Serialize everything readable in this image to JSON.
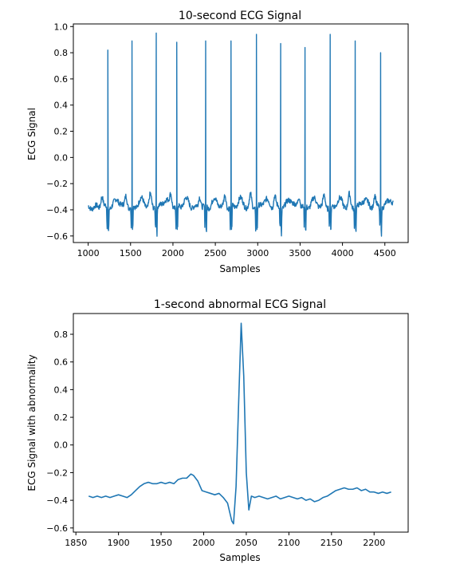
{
  "chart_data": [
    {
      "type": "line",
      "title": "10-second ECG Signal",
      "xlabel": "Samples",
      "ylabel": "ECG Signal",
      "xlim": [
        825,
        4775
      ],
      "ylim": [
        -0.65,
        1.02
      ],
      "xticks": [
        1000,
        1500,
        2000,
        2500,
        3000,
        3500,
        4000,
        4500
      ],
      "yticks": [
        -0.6,
        -0.4,
        -0.2,
        0.0,
        0.2,
        0.4,
        0.6,
        0.8,
        1.0
      ],
      "ytick_labels": [
        "−0.6",
        "−0.4",
        "−0.2",
        "0.0",
        "0.2",
        "0.4",
        "0.6",
        "0.8",
        "1.0"
      ],
      "series_color": "#1f77b4",
      "grid": false,
      "x_range": [
        1000,
        4600
      ],
      "baseline": -0.38,
      "r_peaks": [
        {
          "x": 1232,
          "y": 0.82
        },
        {
          "x": 1517,
          "y": 0.89
        },
        {
          "x": 1803,
          "y": 0.95
        },
        {
          "x": 2045,
          "y": 0.88
        },
        {
          "x": 2386,
          "y": 0.89
        },
        {
          "x": 2685,
          "y": 0.89
        },
        {
          "x": 2985,
          "y": 0.94
        },
        {
          "x": 3271,
          "y": 0.87
        },
        {
          "x": 3558,
          "y": 0.84
        },
        {
          "x": 3855,
          "y": 0.94
        },
        {
          "x": 4150,
          "y": 0.89
        },
        {
          "x": 4450,
          "y": 0.8
        }
      ]
    },
    {
      "type": "line",
      "title": "1-second abnormal ECG Signal",
      "xlabel": "Samples",
      "ylabel": "ECG Signal with abnormality",
      "xlim": [
        1847,
        2240
      ],
      "ylim": [
        -0.63,
        0.95
      ],
      "xticks": [
        1850,
        1900,
        1950,
        2000,
        2050,
        2100,
        2150,
        2200
      ],
      "yticks": [
        -0.6,
        -0.4,
        -0.2,
        0.0,
        0.2,
        0.4,
        0.6,
        0.8
      ],
      "ytick_labels": [
        "−0.6",
        "−0.4",
        "−0.2",
        "0.0",
        "0.2",
        "0.4",
        "0.6",
        "0.8"
      ],
      "series_color": "#1f77b4",
      "grid": false,
      "points": [
        [
          1865,
          -0.37
        ],
        [
          1870,
          -0.38
        ],
        [
          1875,
          -0.37
        ],
        [
          1880,
          -0.38
        ],
        [
          1885,
          -0.37
        ],
        [
          1890,
          -0.38
        ],
        [
          1895,
          -0.37
        ],
        [
          1900,
          -0.36
        ],
        [
          1905,
          -0.37
        ],
        [
          1910,
          -0.38
        ],
        [
          1915,
          -0.36
        ],
        [
          1920,
          -0.33
        ],
        [
          1925,
          -0.3
        ],
        [
          1930,
          -0.28
        ],
        [
          1935,
          -0.27
        ],
        [
          1940,
          -0.28
        ],
        [
          1945,
          -0.28
        ],
        [
          1950,
          -0.27
        ],
        [
          1955,
          -0.28
        ],
        [
          1960,
          -0.27
        ],
        [
          1965,
          -0.28
        ],
        [
          1970,
          -0.25
        ],
        [
          1975,
          -0.24
        ],
        [
          1980,
          -0.24
        ],
        [
          1985,
          -0.21
        ],
        [
          1988,
          -0.22
        ],
        [
          1993,
          -0.26
        ],
        [
          1998,
          -0.33
        ],
        [
          2003,
          -0.34
        ],
        [
          2008,
          -0.35
        ],
        [
          2013,
          -0.36
        ],
        [
          2018,
          -0.35
        ],
        [
          2023,
          -0.38
        ],
        [
          2028,
          -0.42
        ],
        [
          2033,
          -0.55
        ],
        [
          2035,
          -0.57
        ],
        [
          2038,
          -0.3
        ],
        [
          2041,
          0.3
        ],
        [
          2044,
          0.88
        ],
        [
          2047,
          0.5
        ],
        [
          2050,
          -0.2
        ],
        [
          2053,
          -0.47
        ],
        [
          2056,
          -0.37
        ],
        [
          2060,
          -0.38
        ],
        [
          2065,
          -0.37
        ],
        [
          2070,
          -0.38
        ],
        [
          2075,
          -0.39
        ],
        [
          2080,
          -0.38
        ],
        [
          2085,
          -0.37
        ],
        [
          2090,
          -0.39
        ],
        [
          2095,
          -0.38
        ],
        [
          2100,
          -0.37
        ],
        [
          2105,
          -0.38
        ],
        [
          2110,
          -0.39
        ],
        [
          2115,
          -0.38
        ],
        [
          2120,
          -0.4
        ],
        [
          2125,
          -0.39
        ],
        [
          2130,
          -0.41
        ],
        [
          2135,
          -0.4
        ],
        [
          2140,
          -0.38
        ],
        [
          2145,
          -0.37
        ],
        [
          2150,
          -0.35
        ],
        [
          2155,
          -0.33
        ],
        [
          2160,
          -0.32
        ],
        [
          2165,
          -0.31
        ],
        [
          2170,
          -0.32
        ],
        [
          2175,
          -0.32
        ],
        [
          2180,
          -0.31
        ],
        [
          2185,
          -0.33
        ],
        [
          2190,
          -0.32
        ],
        [
          2195,
          -0.34
        ],
        [
          2200,
          -0.34
        ],
        [
          2205,
          -0.35
        ],
        [
          2210,
          -0.34
        ],
        [
          2215,
          -0.35
        ],
        [
          2220,
          -0.34
        ]
      ]
    }
  ]
}
